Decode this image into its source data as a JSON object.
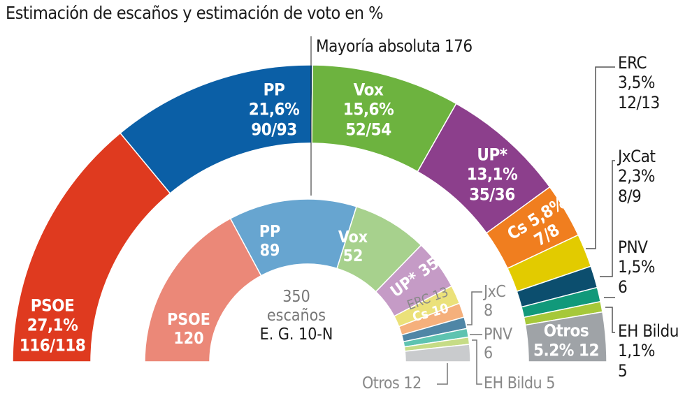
{
  "chart_data": {
    "type": "pie",
    "subtype": "parliament-semicircle",
    "title": "Estimación de escaños y estimación de voto",
    "title_unit": "en %",
    "majority_label": "Mayoría absoluta 176",
    "outer_ring": {
      "basis": "vote share",
      "segments": [
        {
          "party": "PSOE",
          "pct_label": "27,1%",
          "pct": 27.1,
          "seats": "116/118",
          "color": "#df3a1f"
        },
        {
          "party": "PP",
          "pct_label": "21,6%",
          "pct": 21.6,
          "seats": "90/93",
          "color": "#0b5fa6"
        },
        {
          "party": "Vox",
          "pct_label": "15,6%",
          "pct": 15.6,
          "seats": "52/54",
          "color": "#6db33f"
        },
        {
          "party": "UP*",
          "pct_label": "13,1%",
          "pct": 13.1,
          "seats": "35/36",
          "color": "#8c3f8c"
        },
        {
          "party": "Cs",
          "pct_label": "5,8%",
          "pct": 5.8,
          "seats": "7/8",
          "color": "#f07e1f"
        },
        {
          "party": "ERC",
          "pct_label": "3,5%",
          "pct": 3.5,
          "seats": "12/13",
          "color": "#e2cb00"
        },
        {
          "party": "JxCat",
          "pct_label": "2,3%",
          "pct": 2.3,
          "seats": "8/9",
          "color": "#0c4e6e"
        },
        {
          "party": "PNV",
          "pct_label": "1,5%",
          "pct": 1.5,
          "seats": "6",
          "color": "#11997a"
        },
        {
          "party": "EH Bildu",
          "pct_label": "1,1%",
          "pct": 1.1,
          "seats": "5",
          "color": "#a6c83a"
        },
        {
          "party": "Otros",
          "pct_label": "5.2%",
          "pct": 5.2,
          "seats": "12",
          "color": "#9fa3a7"
        }
      ]
    },
    "inner_ring": {
      "total_label": "350",
      "total_unit": "escaños",
      "election": "E. G. 10-N",
      "segments": [
        {
          "party": "PSOE",
          "seats": 120,
          "color": "#eb8878"
        },
        {
          "party": "PP",
          "seats": 89,
          "color": "#67a5d0"
        },
        {
          "party": "Vox",
          "seats": 52,
          "color": "#a7d18d"
        },
        {
          "party": "UP*",
          "seats": 35,
          "color": "#c59bc6"
        },
        {
          "party": "ERC",
          "seats": 13,
          "color": "#ebe17a"
        },
        {
          "party": "Cs",
          "seats": 10,
          "color": "#f5b07c"
        },
        {
          "party": "JxC",
          "seats": 8,
          "color": "#4f86a6"
        },
        {
          "party": "PNV",
          "seats": 6,
          "color": "#5ec3b0"
        },
        {
          "party": "EH Bildu",
          "seats": 5,
          "color": "#c6dc86"
        },
        {
          "party": "Otros",
          "seats": 12,
          "color": "#c9cbcd"
        }
      ]
    }
  }
}
